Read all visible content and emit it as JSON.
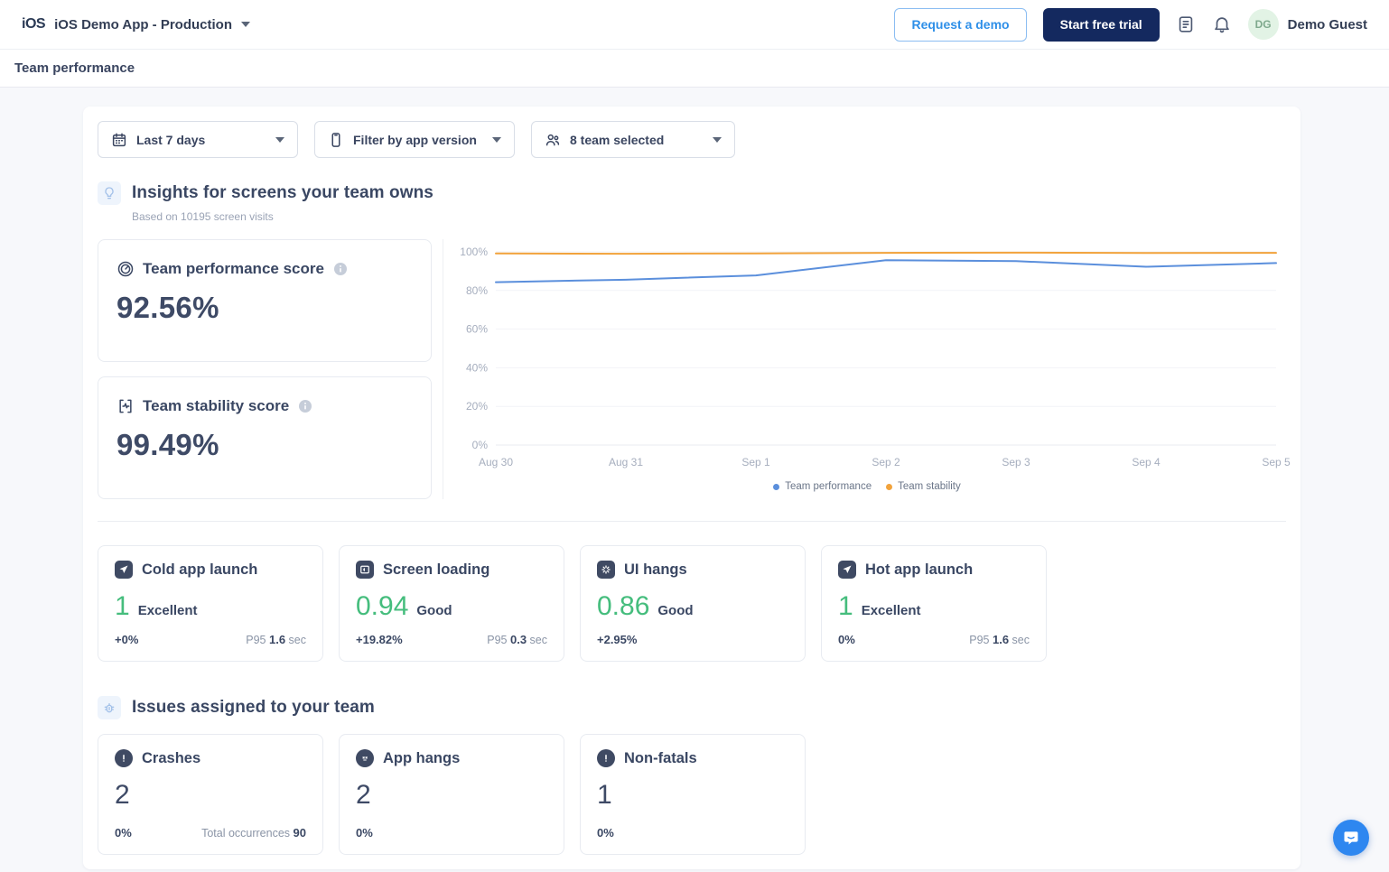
{
  "topnav": {
    "logo": "iOS",
    "app_selector": "iOS Demo App - Production",
    "request_demo_label": "Request a demo",
    "start_trial_label": "Start free trial",
    "user_initials": "DG",
    "user_name": "Demo Guest"
  },
  "subheader": {
    "title": "Team performance"
  },
  "filters": {
    "date_range": "Last 7 days",
    "app_version": "Filter by app version",
    "team": "8 team selected"
  },
  "insights": {
    "title": "Insights for screens your team owns",
    "subtitle": "Based on 10195 screen visits",
    "performance_score": {
      "title": "Team performance score",
      "value": "92.56%"
    },
    "stability_score": {
      "title": "Team stability score",
      "value": "99.49%"
    }
  },
  "chart_data": {
    "type": "line",
    "categories": [
      "Aug 30",
      "Aug 31",
      "Sep 1",
      "Sep 2",
      "Sep 3",
      "Sep 4",
      "Sep 5"
    ],
    "series": [
      {
        "name": "Team performance",
        "color": "#5B8FDC",
        "values": [
          84.3,
          85.6,
          87.8,
          95.7,
          95.2,
          92.3,
          94.2
        ]
      },
      {
        "name": "Team stability",
        "color": "#F2A33C",
        "values": [
          99.2,
          99.0,
          99.2,
          99.5,
          99.6,
          99.4,
          99.5
        ]
      }
    ],
    "ylim": [
      0,
      100
    ],
    "yticks": [
      0,
      20,
      40,
      60,
      80,
      100
    ],
    "ytick_suffix": "%",
    "grid": true,
    "legend_position": "bottom"
  },
  "metrics": {
    "cards": [
      {
        "title": "Cold app launch",
        "value": "1",
        "rating": "Excellent",
        "delta": "+0%",
        "p95_label": "P95",
        "p95_value": "1.6",
        "p95_unit": "sec"
      },
      {
        "title": "Screen loading",
        "value": "0.94",
        "rating": "Good",
        "delta": "+19.82%",
        "p95_label": "P95",
        "p95_value": "0.3",
        "p95_unit": "sec"
      },
      {
        "title": "UI hangs",
        "value": "0.86",
        "rating": "Good",
        "delta": "+2.95%"
      },
      {
        "title": "Hot app launch",
        "value": "1",
        "rating": "Excellent",
        "delta": "0%",
        "p95_label": "P95",
        "p95_value": "1.6",
        "p95_unit": "sec"
      }
    ]
  },
  "issues": {
    "title": "Issues assigned to your team",
    "cards": [
      {
        "title": "Crashes",
        "value": "2",
        "delta": "0%",
        "total_label": "Total occurrences",
        "total_value": "90"
      },
      {
        "title": "App hangs",
        "value": "2",
        "delta": "0%"
      },
      {
        "title": "Non-fatals",
        "value": "1",
        "delta": "0%"
      }
    ]
  },
  "colors": {
    "accent_blue": "#2E8FE8",
    "navy_button": "#14295F",
    "good_green": "#45BD7D",
    "line_performance": "#5B8FDC",
    "line_stability": "#F2A33C"
  }
}
